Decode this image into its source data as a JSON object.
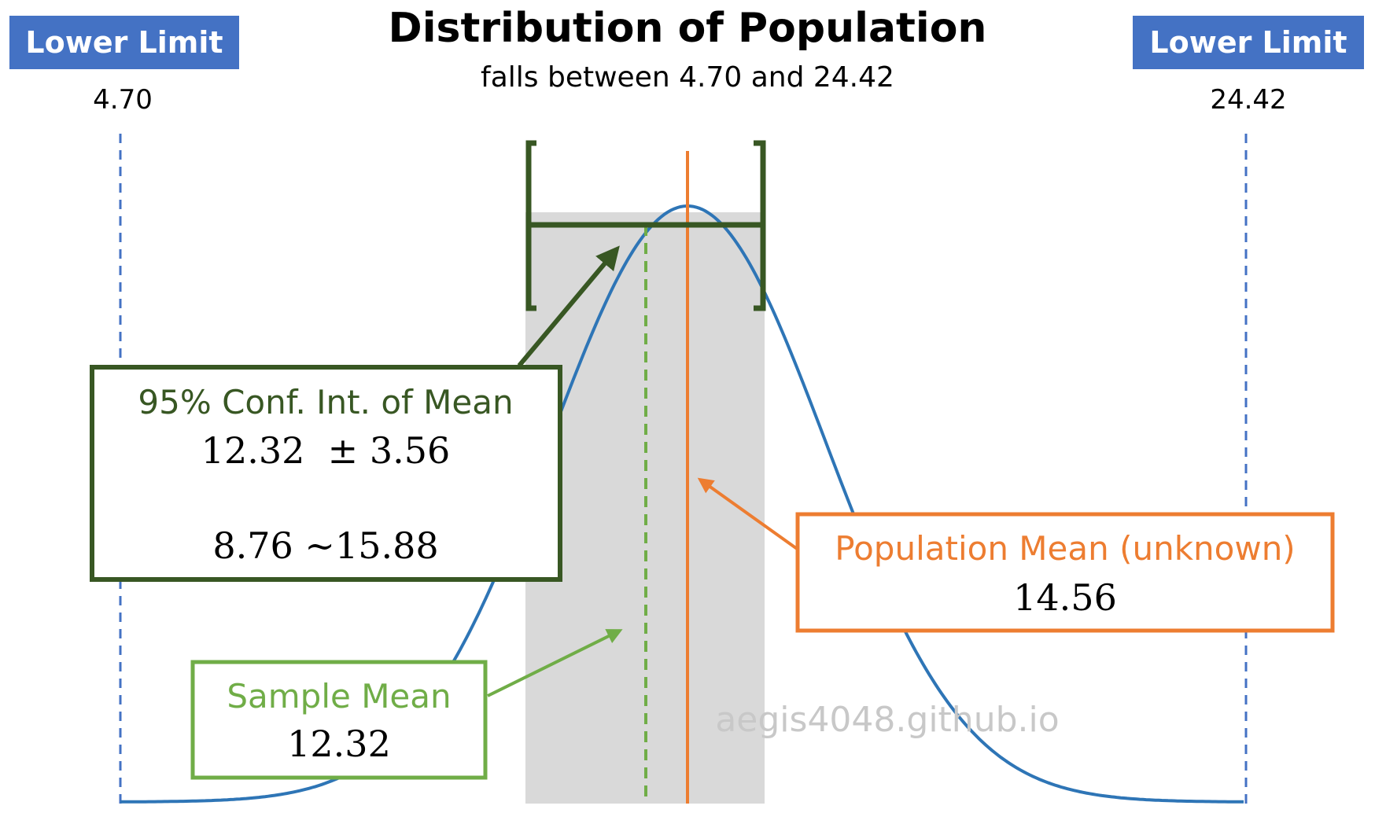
{
  "title": "Distribution of Population",
  "subtitle": "falls between 4.70 and 24.42",
  "left_limit": {
    "badge": "Lower Limit",
    "value": "4.70"
  },
  "right_limit": {
    "badge": "Lower Limit",
    "value": "24.42"
  },
  "ci_box": {
    "label": "95% Conf. Int. of Mean",
    "estimate": "12.32  ± 3.56",
    "range": "8.76 ~15.88"
  },
  "population_box": {
    "label": "Population Mean (unknown)",
    "value": "14.56"
  },
  "sample_box": {
    "label": "Sample Mean",
    "value": "12.32"
  },
  "watermark": "aegis4048.github.io",
  "colors": {
    "curve": "#2e75b6",
    "badge": "#4472c4",
    "limit_line": "#4472c4",
    "ci": "#385723",
    "sample": "#70ad47",
    "population": "#ed7d31",
    "shade": "#d9d9d9"
  }
}
